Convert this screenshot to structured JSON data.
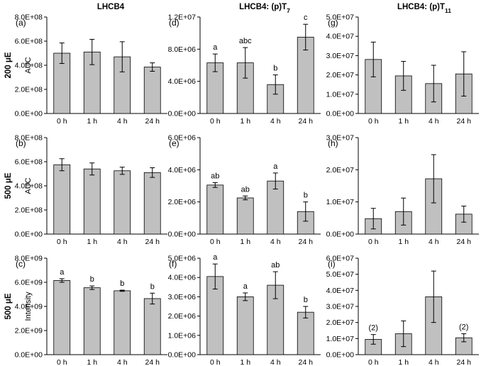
{
  "column_titles": [
    {
      "text": "LHCB4",
      "sub": ""
    },
    {
      "text": "LHCB4: (p)T",
      "sub": "7"
    },
    {
      "text": "LHCB4: (p)T",
      "sub": "11"
    }
  ],
  "row_labels": [
    "200 μE",
    "500 μE",
    "500 μE"
  ],
  "ylabels": [
    "AUC",
    "AUC",
    "Intensity"
  ],
  "chart_data": [
    {
      "panel": "(a)",
      "type": "bar",
      "categories": [
        "0 h",
        "1 h",
        "4 h",
        "24 h"
      ],
      "values": [
        500000000.0,
        510000000.0,
        470000000.0,
        385000000.0
      ],
      "errors": [
        85000000.0,
        105000000.0,
        125000000.0,
        35000000.0
      ],
      "annotations": [
        "",
        "",
        "",
        ""
      ],
      "ylim": [
        0,
        800000000.0
      ],
      "yticks": [
        "0.0E+00",
        "2.0E+08",
        "4.0E+08",
        "6.0E+08",
        "8.0E+08"
      ],
      "ylabel": "AUC"
    },
    {
      "panel": "(d)",
      "type": "bar",
      "categories": [
        "0 h",
        "1 h",
        "4 h",
        "24 h"
      ],
      "values": [
        6300000.0,
        6300000.0,
        3600000.0,
        9500000.0
      ],
      "errors": [
        1100000.0,
        1900000.0,
        1200000.0,
        1600000.0
      ],
      "annotations": [
        "a",
        "abc",
        "b",
        "c"
      ],
      "ylim": [
        0,
        12000000.0
      ],
      "yticks": [
        "0.0E+00",
        "4.0E+06",
        "8.0E+06",
        "1.2E+07"
      ],
      "ylabel": ""
    },
    {
      "panel": "(g)",
      "type": "bar",
      "categories": [
        "0 h",
        "1 h",
        "4 h",
        "24 h"
      ],
      "values": [
        28000000.0,
        19500000.0,
        15500000.0,
        20500000.0
      ],
      "errors": [
        9000000.0,
        7500000.0,
        9500000.0,
        11500000.0
      ],
      "annotations": [
        "",
        "",
        "",
        ""
      ],
      "ylim": [
        0,
        50000000.0
      ],
      "yticks": [
        "0.0E+00",
        "1.0E+07",
        "2.0E+07",
        "3.0E+07",
        "4.0E+07",
        "5.0E+07"
      ],
      "ylabel": ""
    },
    {
      "panel": "(b)",
      "type": "bar",
      "categories": [
        "0 h",
        "1 h",
        "4 h",
        "24 h"
      ],
      "values": [
        575000000.0,
        540000000.0,
        525000000.0,
        510000000.0
      ],
      "errors": [
        50000000.0,
        50000000.0,
        30000000.0,
        40000000.0
      ],
      "annotations": [
        "",
        "",
        "",
        ""
      ],
      "ylim": [
        0,
        800000000.0
      ],
      "yticks": [
        "0.0E+00",
        "2.0E+08",
        "4.0E+08",
        "6.0E+08",
        "8.0E+08"
      ],
      "ylabel": "AUC"
    },
    {
      "panel": "(e)",
      "type": "bar",
      "categories": [
        "0 h",
        "1 h",
        "4 h",
        "24 h"
      ],
      "values": [
        3050000.0,
        2250000.0,
        3300000.0,
        1400000.0
      ],
      "errors": [
        150000.0,
        120000.0,
        500000.0,
        600000.0
      ],
      "annotations": [
        "ab",
        "ab",
        "a",
        "b"
      ],
      "ylim": [
        0,
        6000000.0
      ],
      "yticks": [
        "0.0E+00",
        "2.0E+06",
        "4.0E+06",
        "6.0E+06"
      ],
      "ylabel": ""
    },
    {
      "panel": "(h)",
      "type": "bar",
      "categories": [
        "0 h",
        "1 h",
        "4 h",
        "24 h"
      ],
      "values": [
        4800000.0,
        7000000.0,
        17200000.0,
        6200000.0
      ],
      "errors": [
        3200000.0,
        4200000.0,
        7500000.0,
        2500000.0
      ],
      "annotations": [
        "",
        "",
        "",
        ""
      ],
      "ylim": [
        0,
        30000000.0
      ],
      "yticks": [
        "0.0E+00",
        "1.0E+07",
        "2.0E+07",
        "3.0E+07"
      ],
      "ylabel": ""
    },
    {
      "panel": "(c)",
      "type": "bar",
      "categories": [
        "0 h",
        "1 h",
        "4 h",
        "24 h"
      ],
      "values": [
        6150000000.0,
        5550000000.0,
        5300000000.0,
        4650000000.0
      ],
      "errors": [
        150000000.0,
        150000000.0,
        50000000.0,
        450000000.0
      ],
      "annotations": [
        "a",
        "b",
        "b",
        "b"
      ],
      "ylim": [
        0,
        8000000000.0
      ],
      "yticks": [
        "0.0E+00",
        "2.0E+09",
        "4.0E+09",
        "6.0E+09",
        "8.0E+09"
      ],
      "ylabel": "Intensity"
    },
    {
      "panel": "(f)",
      "type": "bar",
      "categories": [
        "0 h",
        "1 h",
        "4 h",
        "24 h"
      ],
      "values": [
        4050000.0,
        3000000.0,
        3600000.0,
        2200000.0
      ],
      "errors": [
        650000.0,
        200000.0,
        700000.0,
        300000.0
      ],
      "annotations": [
        "a",
        "a",
        "ab",
        "b"
      ],
      "ylim": [
        0,
        5000000.0
      ],
      "yticks": [
        "0.0E+00",
        "1.0E+06",
        "2.0E+06",
        "3.0E+06",
        "4.0E+06",
        "5.0E+06"
      ],
      "ylabel": ""
    },
    {
      "panel": "(i)",
      "type": "bar",
      "categories": [
        "0 h",
        "1 h",
        "4 h",
        "24 h"
      ],
      "values": [
        9500000.0,
        13000000.0,
        36000000.0,
        10500000.0
      ],
      "errors": [
        3000000.0,
        8000000.0,
        16000000.0,
        2500000.0
      ],
      "annotations": [
        "(2)",
        "",
        "",
        "(2)"
      ],
      "ylim": [
        0,
        60000000.0
      ],
      "yticks": [
        "0.0E+00",
        "1.0E+07",
        "2.0E+07",
        "3.0E+07",
        "4.0E+07",
        "5.0E+07",
        "6.0E+07"
      ],
      "ylabel": ""
    }
  ],
  "colors": {
    "bar_fill": "#c0c0c0",
    "bar_stroke": "#000000",
    "axis": "#000000"
  }
}
